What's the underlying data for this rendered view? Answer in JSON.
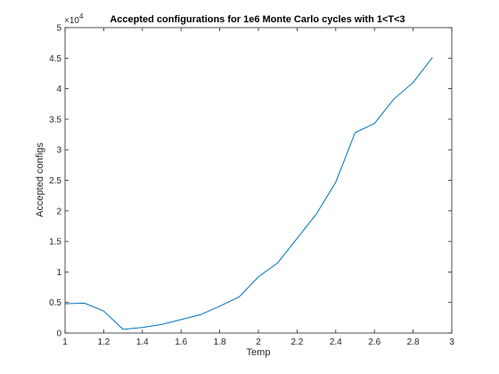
{
  "chart_data": {
    "type": "line",
    "title": "Accepted configurations for 1e6 Monte Carlo cycles with 1<T<3",
    "xlabel": "Temp",
    "ylabel": "Accepted configs",
    "y_exponent_label": "×10",
    "y_exponent_power": "4",
    "xlim": [
      1,
      3
    ],
    "ylim": [
      0,
      50000
    ],
    "x_ticks": [
      1,
      1.2,
      1.4,
      1.6,
      1.8,
      2,
      2.2,
      2.4,
      2.6,
      2.8,
      3
    ],
    "x_tick_labels": [
      "1",
      "1.2",
      "1.4",
      "1.6",
      "1.8",
      "2",
      "2.2",
      "2.4",
      "2.6",
      "2.8",
      "3"
    ],
    "y_ticks": [
      0,
      5000,
      10000,
      15000,
      20000,
      25000,
      30000,
      35000,
      40000,
      45000,
      50000
    ],
    "y_tick_labels": [
      "0",
      "0.5",
      "1",
      "1.5",
      "2",
      "2.5",
      "3",
      "3.5",
      "4",
      "4.5",
      "5"
    ],
    "grid": false,
    "line_color": "#0072bd",
    "series": [
      {
        "x": [
          1.0,
          1.1,
          1.2,
          1.3,
          1.4,
          1.5,
          1.6,
          1.7,
          1.8,
          1.9,
          2.0,
          2.1,
          2.2,
          2.3,
          2.4,
          2.5,
          2.6,
          2.7,
          2.8,
          2.9
        ],
        "values": [
          4800,
          4900,
          3600,
          600,
          900,
          1400,
          2200,
          3000,
          4400,
          5900,
          9200,
          11500,
          15500,
          19500,
          24700,
          32800,
          34300,
          38300,
          41000,
          45100
        ]
      }
    ]
  }
}
